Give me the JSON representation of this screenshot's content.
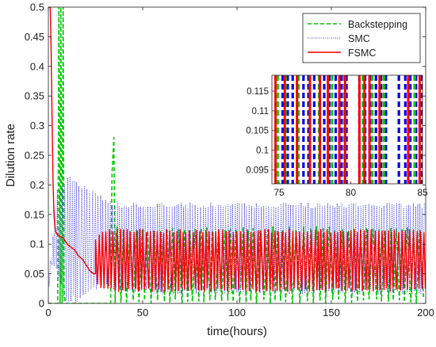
{
  "chart_data": {
    "type": "line",
    "title": "",
    "xlabel": "time(hours)",
    "ylabel": "Dilution rate",
    "xlim": [
      0,
      200
    ],
    "ylim": [
      0,
      0.5
    ],
    "xticks": [
      0,
      50,
      100,
      150,
      200
    ],
    "yticks": [
      0,
      0.05,
      0.1,
      0.15,
      0.2,
      0.25,
      0.3,
      0.35,
      0.4,
      0.45,
      0.5
    ],
    "ytick_labels": [
      "0",
      "0.05",
      "0.1",
      "0.15",
      "0.2",
      "0.25",
      "0.3",
      "0.35",
      "0.4",
      "0.45",
      "0.5"
    ],
    "grid": false,
    "legend_position": "top-right",
    "series": [
      {
        "name": "Backstepping",
        "color": "#00cc00",
        "style": "dashed",
        "envelope": {
          "x": [
            0,
            5,
            6,
            7,
            8,
            9,
            10,
            20,
            30,
            33,
            34,
            34.7,
            35.5,
            36,
            40,
            50,
            100,
            200
          ],
          "lo": [
            0,
            0,
            0,
            0,
            0,
            0,
            0,
            0,
            0,
            0,
            0,
            0,
            0,
            0,
            0,
            0,
            0,
            0
          ],
          "hi": [
            0,
            0,
            0.5,
            0.5,
            0.5,
            0.05,
            0.02,
            0.02,
            0.02,
            0.05,
            0.22,
            0.28,
            0.2,
            0.13,
            0.13,
            0.13,
            0.13,
            0.13
          ]
        }
      },
      {
        "name": "SMC",
        "color": "#3b3bd6",
        "style": "dotted",
        "envelope": {
          "x": [
            0,
            1,
            2,
            4,
            6,
            8,
            10,
            12,
            15,
            20,
            25,
            30,
            35,
            40,
            50,
            60,
            80,
            100,
            150,
            200
          ],
          "lo": [
            0,
            0.06,
            0.065,
            0.06,
            0.035,
            0.01,
            0,
            0,
            0,
            0.01,
            0.02,
            0.025,
            0.02,
            0.02,
            0.015,
            0.015,
            0.015,
            0.015,
            0.015,
            0.015
          ],
          "hi": [
            0.06,
            0.07,
            0.09,
            0.19,
            0.2,
            0.205,
            0.22,
            0.215,
            0.21,
            0.2,
            0.19,
            0.18,
            0.172,
            0.17,
            0.17,
            0.17,
            0.17,
            0.17,
            0.17,
            0.17
          ]
        }
      },
      {
        "name": "FSMC",
        "color": "#ff0000",
        "style": "solid",
        "initial": {
          "x": [
            0,
            0.5,
            1,
            1.5,
            2,
            2.5,
            3,
            3.5,
            4,
            5,
            6,
            7,
            8,
            10,
            12,
            14,
            16,
            18,
            20,
            22,
            24,
            25
          ],
          "y": [
            0.5,
            0.5,
            0.5,
            0.42,
            0.3,
            0.2,
            0.15,
            0.13,
            0.12,
            0.115,
            0.113,
            0.112,
            0.11,
            0.1,
            0.095,
            0.09,
            0.08,
            0.075,
            0.065,
            0.055,
            0.05,
            0.05
          ]
        },
        "envelope": {
          "x": [
            25,
            30,
            40,
            60,
            100,
            200
          ],
          "lo": [
            0.03,
            0.02,
            0.02,
            0.02,
            0.02,
            0.02
          ],
          "hi": [
            0.11,
            0.125,
            0.125,
            0.125,
            0.125,
            0.125
          ]
        }
      }
    ],
    "inset": {
      "xlim": [
        74.5,
        85
      ],
      "ylim": [
        0.0915,
        0.119
      ],
      "xticks": [
        75,
        80,
        85
      ],
      "yticks": [
        0.095,
        0.1,
        0.105,
        0.11,
        0.115
      ],
      "ytick_labels": [
        "0.095",
        "0.1",
        "0.105",
        "0.11",
        "0.115"
      ],
      "switching_times": {
        "Backstepping": [
          74.9,
          75.45,
          76.35,
          77.15,
          77.8,
          78.7,
          79.55,
          80.85,
          81.5,
          82.3,
          84.45
        ],
        "SMC": [
          74.8,
          75.25,
          75.6,
          75.95,
          76.3,
          76.7,
          77.05,
          77.45,
          77.8,
          78.15,
          78.5,
          78.95,
          79.35,
          79.7,
          80.6,
          81.0,
          81.35,
          81.75,
          82.1,
          82.45,
          83.35,
          83.8,
          84.15,
          84.55,
          84.95
        ],
        "FSMC": [
          74.75,
          75.4,
          76.25,
          77.15,
          77.85,
          78.4,
          79.2,
          79.6,
          80.6,
          80.95,
          81.3,
          82.0,
          84.0,
          84.8
        ]
      }
    }
  }
}
